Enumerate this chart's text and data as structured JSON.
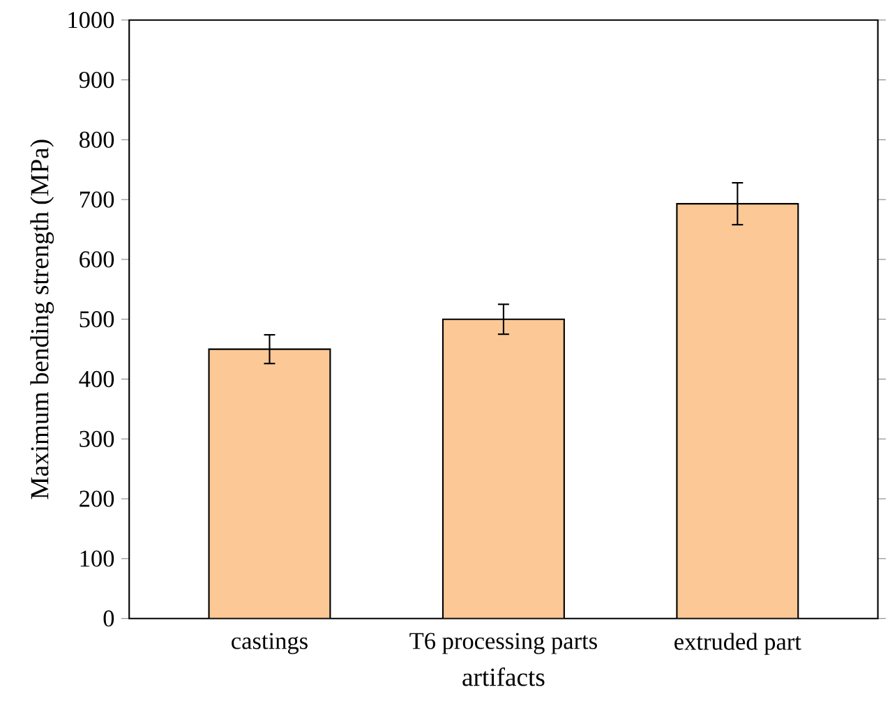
{
  "chart_data": {
    "type": "bar",
    "categories": [
      "castings",
      "T6 processing parts",
      "extruded part"
    ],
    "values": [
      450,
      500,
      693
    ],
    "errors": [
      24,
      25,
      35
    ],
    "color": "#fbc896",
    "xlabel": "artifacts",
    "ylabel": "Maximum bending strength (MPa)",
    "ylim": [
      0,
      1000
    ],
    "yticks": [
      0,
      100,
      200,
      300,
      400,
      500,
      600,
      700,
      800,
      900,
      1000
    ],
    "grid": false
  }
}
